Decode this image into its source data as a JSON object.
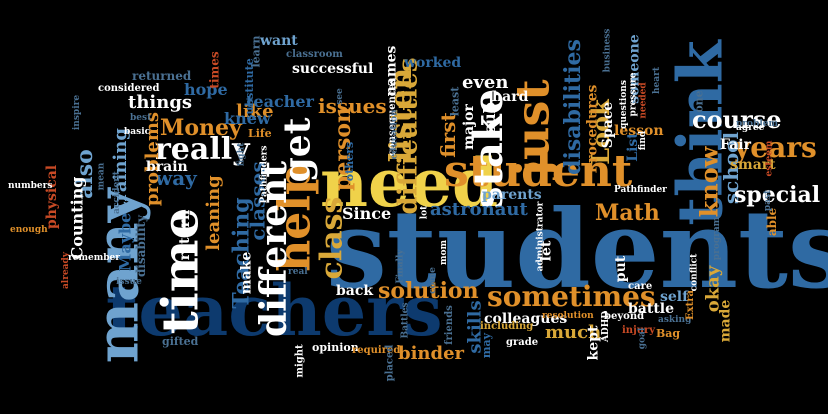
{
  "words": {
    "students": "students",
    "teachers": "teachers",
    "need": "need",
    "many": "many",
    "think": "think",
    "time": "time",
    "student": "student",
    "help": "help",
    "just": "just",
    "different": "different",
    "stake": "stake",
    "get": "get",
    "listen": "listen",
    "sometimes": "sometimes",
    "class": "class",
    "difficulties": "difficulties",
    "disabilities": "disabilities",
    "really": "really",
    "Money": "Money",
    "Teaching": "Teaching",
    "course": "course",
    "years": "years",
    "Look": "Look",
    "know": "know",
    "school": "school",
    "person": "person",
    "Math": "Math",
    "special": "special",
    "solution": "solution",
    "astronaut": "astronaut",
    "binder": "binder",
    "colleagues": "colleagues",
    "skills": "skills",
    "first": "first",
    "issues": "issues",
    "classes": "classes",
    "leaning": "leaning",
    "things": "things",
    "training": "training",
    "also": "also",
    "Since": "Since",
    "much": "much",
    "like": "like",
    "teacher": "teacher",
    "knew": "knew",
    "hope": "hope",
    "even": "even",
    "want": "want",
    "way": "way",
    "okay": "okay",
    "parents": "parents",
    "Counting": "Counting",
    "problems": "problems",
    "Maybe": "Maybe",
    "brain": "brain",
    "make": "make",
    "back": "back",
    "return": "return",
    "successful": "successful",
    "worked": "worked",
    "hard": "hard",
    "sub": "sub",
    "major": "major",
    "names": "names",
    "Procedures": "Procedures",
    "someone": "someone",
    "List": "List",
    "lesson": "lesson",
    "Space": "Space",
    "smart": "smart",
    "battle": "battle",
    "self": "self",
    "Fair": "Fair",
    "put": "put",
    "kept": "kept",
    "let": "let",
    "made": "made",
    "physical": "physical",
    "returned": "returned",
    "considered": "considered",
    "times": "times",
    "classroom": "classroom",
    "learn": "learn",
    "substitute": "substitute",
    "Life": "Life",
    "disability": "disability",
    "numbers": "numbers",
    "enough": "enough",
    "already": "already",
    "remember": "remember",
    "accident": "accident",
    "mean": "mean",
    "basic": "basic",
    "best": "best",
    "inspire": "inspire",
    "gifted": "gifted",
    "issue": "issue",
    "might": "might",
    "opinion": "opinion",
    "required": "required",
    "placed": "placed",
    "friends": "friends",
    "grade": "grade",
    "including": "including",
    "beyond": "beyond",
    "injury": "injury",
    "ADHD": "ADHD",
    "asking": "asking",
    "Bag": "Bag",
    "Extra": "Extra",
    "care": "care",
    "able": "able",
    "past": "past",
    "conflict": "conflict",
    "program": "program",
    "Pathfinder": "Pathfinder",
    "Pathfinders": "Pathfinders",
    "administrator": "administrator",
    "resolution": "resolution",
    "questions": "questions",
    "pressure": "pressure",
    "needed": "needed",
    "problem": "problem",
    "find": "find",
    "agree": "agree",
    "esteem": "esteem",
    "one": "one",
    "heart": "heart",
    "lot": "lot",
    "mom": "mom",
    "come": "come",
    "Finally": "Finally",
    "real": "real",
    "consequences": "consequences",
    "education": "education",
    "least": "least",
    "others": "others",
    "business": "business",
    "fight": "fight",
    "Battles": "Battles",
    "may": "may",
    "see": "see",
    "goal": "goal"
  },
  "palette": {
    "dark_blue": "#0d3a6e",
    "mid_blue": "#2f6aa3",
    "light_blue": "#6fa3cf",
    "slate": "#4a7092",
    "teal": "#5a8fa8",
    "white": "#ffffff",
    "yellow": "#f0d24a",
    "orange": "#e0902a",
    "gold": "#d9a838",
    "red": "#c84a25",
    "dark_red": "#8a3418",
    "background": "#000000"
  }
}
